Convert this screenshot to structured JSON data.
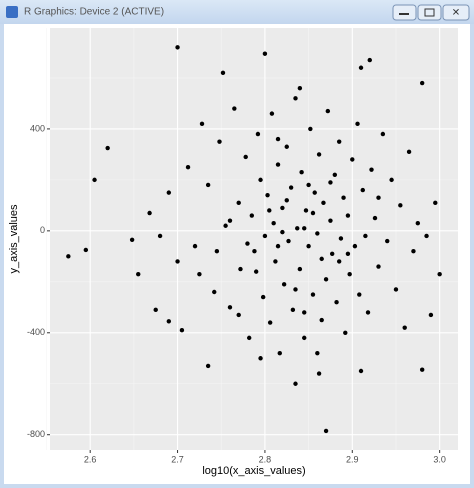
{
  "window_title": "R Graphics: Device 2 (ACTIVE)",
  "chart_data": {
    "type": "scatter",
    "x_label": "log10(x_axis_values)",
    "y_label": "y_axis_values",
    "xlim": [
      2.554,
      3.021
    ],
    "ylim": [
      -860,
      796
    ],
    "xticks": [
      2.6,
      2.7,
      2.8,
      2.9,
      {
        "value": 3,
        "label": "3.0"
      }
    ],
    "yticks": [
      -800,
      -400,
      0,
      400
    ],
    "xminorticks": [
      2.55,
      2.65,
      2.75,
      2.85,
      2.95
    ],
    "yminorticks": [
      -600,
      -200,
      200,
      600
    ],
    "grid": true,
    "panel_color": "#ebebeb",
    "series": [
      {
        "color": "#000000",
        "x": [
          2.575,
          2.595,
          2.605,
          2.62,
          2.648,
          2.7,
          2.752,
          2.8,
          2.91,
          2.92,
          2.98,
          2.87,
          2.835,
          2.91,
          2.98,
          2.735,
          2.99,
          3.0,
          2.995,
          2.675,
          2.69,
          2.705,
          2.655,
          2.668,
          2.68,
          2.69,
          2.7,
          2.712,
          2.72,
          2.728,
          2.735,
          2.742,
          2.748,
          2.755,
          2.76,
          2.765,
          2.77,
          2.772,
          2.778,
          2.782,
          2.785,
          2.788,
          2.792,
          2.795,
          2.798,
          2.8,
          2.803,
          2.806,
          2.808,
          2.81,
          2.812,
          2.815,
          2.817,
          2.82,
          2.822,
          2.825,
          2.827,
          2.83,
          2.832,
          2.835,
          2.837,
          2.84,
          2.842,
          2.845,
          2.847,
          2.85,
          2.852,
          2.855,
          2.857,
          2.86,
          2.862,
          2.865,
          2.867,
          2.87,
          2.872,
          2.875,
          2.877,
          2.88,
          2.882,
          2.885,
          2.887,
          2.89,
          2.892,
          2.895,
          2.897,
          2.9,
          2.903,
          2.906,
          2.908,
          2.912,
          2.915,
          2.918,
          2.922,
          2.926,
          2.93,
          2.935,
          2.94,
          2.945,
          2.95,
          2.955,
          2.96,
          2.965,
          2.97,
          2.975,
          2.985,
          2.79,
          2.815,
          2.825,
          2.845,
          2.855,
          2.865,
          2.805,
          2.835,
          2.875,
          2.845,
          2.815,
          2.86,
          2.78,
          2.76,
          2.885,
          2.82,
          2.85,
          2.895,
          2.77,
          2.93,
          2.84,
          2.862,
          2.795,
          2.745,
          2.725
        ],
        "values": [
          -100,
          -75,
          200,
          325,
          -35,
          720,
          620,
          695,
          640,
          670,
          580,
          -785,
          -600,
          -550,
          -545,
          -530,
          -330,
          -170,
          110,
          -310,
          -355,
          -390,
          -170,
          70,
          -20,
          150,
          -120,
          250,
          -60,
          420,
          180,
          -240,
          350,
          20,
          -300,
          480,
          110,
          -150,
          290,
          -420,
          60,
          -80,
          380,
          200,
          -260,
          -20,
          140,
          -360,
          460,
          30,
          -120,
          260,
          -480,
          90,
          -210,
          330,
          -40,
          170,
          -310,
          520,
          10,
          -150,
          230,
          -420,
          80,
          -60,
          400,
          -250,
          150,
          -10,
          300,
          -350,
          110,
          -190,
          470,
          40,
          -90,
          220,
          -280,
          350,
          -30,
          130,
          -400,
          60,
          -170,
          280,
          -60,
          420,
          -250,
          160,
          -20,
          -320,
          240,
          50,
          -140,
          380,
          -40,
          200,
          -230,
          100,
          -380,
          310,
          -80,
          30,
          -20,
          -160,
          -60,
          120,
          10,
          70,
          -110,
          80,
          -230,
          190,
          -320,
          360,
          -480,
          -50,
          40,
          -120,
          -5,
          180,
          -90,
          -330,
          130,
          560,
          -560,
          -500,
          -80,
          -170
        ]
      }
    ]
  }
}
